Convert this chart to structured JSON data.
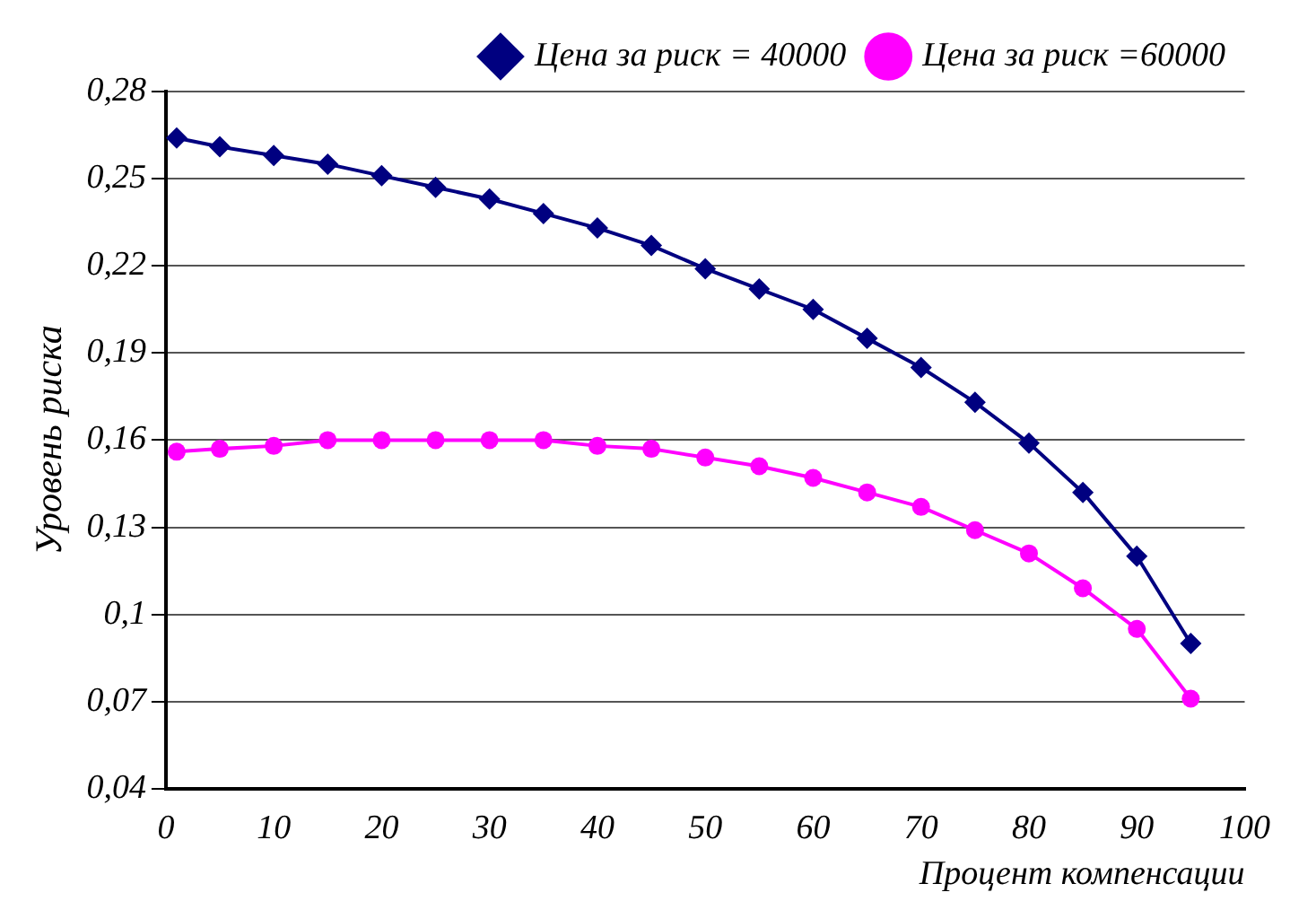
{
  "chart_data": {
    "type": "line",
    "xlabel": "Процент компенсации",
    "ylabel": "Уровень риска",
    "x": [
      1,
      5,
      10,
      15,
      20,
      25,
      30,
      35,
      40,
      45,
      50,
      55,
      60,
      65,
      70,
      75,
      80,
      85,
      90,
      95
    ],
    "series": [
      {
        "name": "Цена за риск = 40000",
        "color": "#000080",
        "marker": "diamond",
        "values": [
          0.264,
          0.261,
          0.258,
          0.255,
          0.251,
          0.247,
          0.243,
          0.238,
          0.233,
          0.227,
          0.219,
          0.212,
          0.205,
          0.195,
          0.185,
          0.173,
          0.159,
          0.142,
          0.12,
          0.09
        ]
      },
      {
        "name": "Цена за риск =60000",
        "color": "#ff00ff",
        "marker": "circle",
        "values": [
          0.156,
          0.157,
          0.158,
          0.16,
          0.16,
          0.16,
          0.16,
          0.16,
          0.158,
          0.157,
          0.154,
          0.151,
          0.147,
          0.142,
          0.137,
          0.129,
          0.121,
          0.109,
          0.095,
          0.071
        ]
      }
    ],
    "xlim": [
      0,
      100
    ],
    "xticks": [
      0,
      10,
      20,
      30,
      40,
      50,
      60,
      70,
      80,
      90,
      100
    ],
    "ylim": [
      0.04,
      0.28
    ],
    "yticks": [
      {
        "value": 0.04,
        "label": "0,04"
      },
      {
        "value": 0.07,
        "label": "0,07"
      },
      {
        "value": 0.1,
        "label": "0,1"
      },
      {
        "value": 0.13,
        "label": "0,13"
      },
      {
        "value": 0.16,
        "label": "0,16"
      },
      {
        "value": 0.19,
        "label": "0,19"
      },
      {
        "value": 0.22,
        "label": "0,22"
      },
      {
        "value": 0.25,
        "label": "0,25"
      },
      {
        "value": 0.28,
        "label": "0,28"
      }
    ],
    "grid": "y",
    "legend": "top right",
    "line_style": "solid"
  }
}
